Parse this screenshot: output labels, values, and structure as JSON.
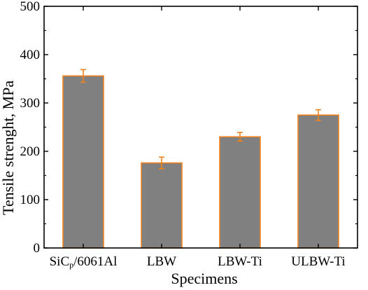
{
  "chart_data": {
    "type": "bar",
    "title": "",
    "xlabel": "Specimens",
    "ylabel": "Tensile strenght, MPa",
    "categories": [
      "SiCp/6061Al",
      "LBW",
      "LBW-Ti",
      "ULBW-Ti"
    ],
    "category_label_parts": [
      {
        "main": "SiC",
        "sub": "p",
        "rest": "/6061Al"
      },
      {
        "main": "LBW",
        "sub": "",
        "rest": ""
      },
      {
        "main": "LBW-Ti",
        "sub": "",
        "rest": ""
      },
      {
        "main": "ULBW-Ti",
        "sub": "",
        "rest": ""
      }
    ],
    "values": [
      356,
      176,
      230,
      275
    ],
    "errors": [
      13,
      12,
      9,
      11
    ],
    "ylim": [
      0,
      500
    ],
    "yticks": [
      0,
      100,
      200,
      300,
      400,
      500
    ],
    "grid": false,
    "colors": {
      "bar_fill": "#808080",
      "bar_edge": "#f0821e",
      "error_bar": "#f0821e",
      "axis": "#000000"
    }
  }
}
